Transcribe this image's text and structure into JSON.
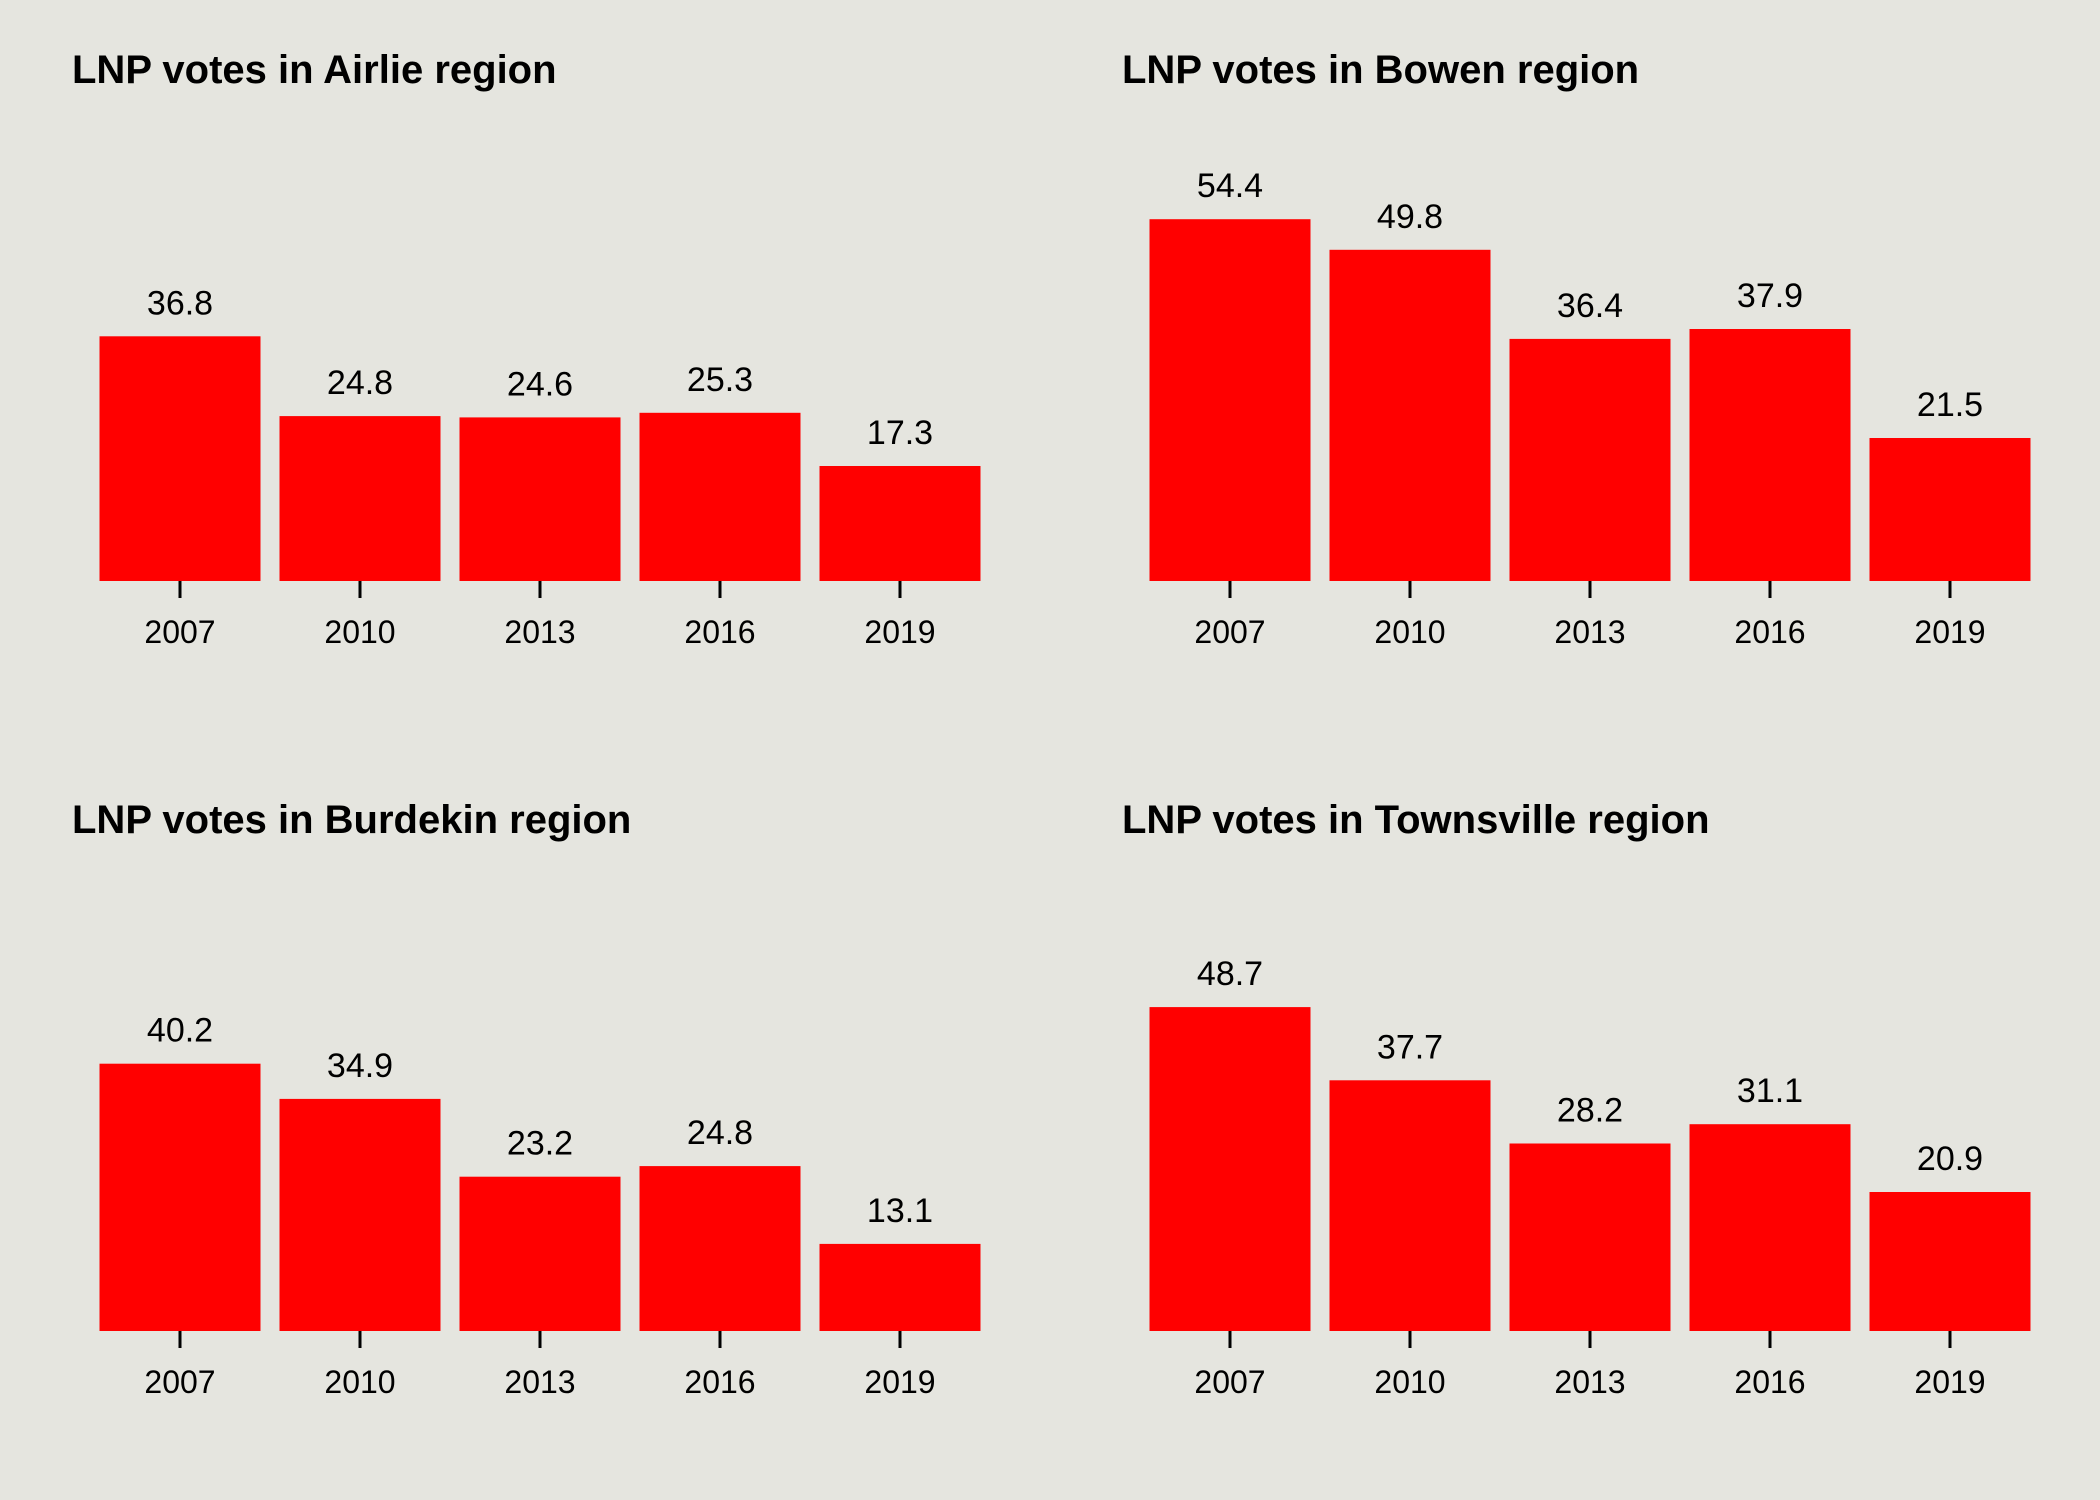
{
  "colors": {
    "background": "#e5e5df",
    "bar": "#ff0000",
    "text": "#000000"
  },
  "chart_data": [
    {
      "type": "bar",
      "title": "LNP votes in Airlie region",
      "categories": [
        "2007",
        "2010",
        "2013",
        "2016",
        "2019"
      ],
      "values": [
        36.8,
        24.8,
        24.6,
        25.3,
        17.3
      ],
      "ylim": [
        0,
        60
      ],
      "grid": false
    },
    {
      "type": "bar",
      "title": "LNP votes in Bowen region",
      "categories": [
        "2007",
        "2010",
        "2013",
        "2016",
        "2019"
      ],
      "values": [
        54.4,
        49.8,
        36.4,
        37.9,
        21.5
      ],
      "ylim": [
        0,
        60
      ],
      "grid": false
    },
    {
      "type": "bar",
      "title": "LNP votes in Burdekin region",
      "categories": [
        "2007",
        "2010",
        "2013",
        "2016",
        "2019"
      ],
      "values": [
        40.2,
        34.9,
        23.2,
        24.8,
        13.1
      ],
      "ylim": [
        0,
        60
      ],
      "grid": false
    },
    {
      "type": "bar",
      "title": "LNP votes in Townsville region",
      "categories": [
        "2007",
        "2010",
        "2013",
        "2016",
        "2019"
      ],
      "values": [
        48.7,
        37.7,
        28.2,
        31.1,
        20.9
      ],
      "ylim": [
        0,
        60
      ],
      "grid": false
    }
  ]
}
